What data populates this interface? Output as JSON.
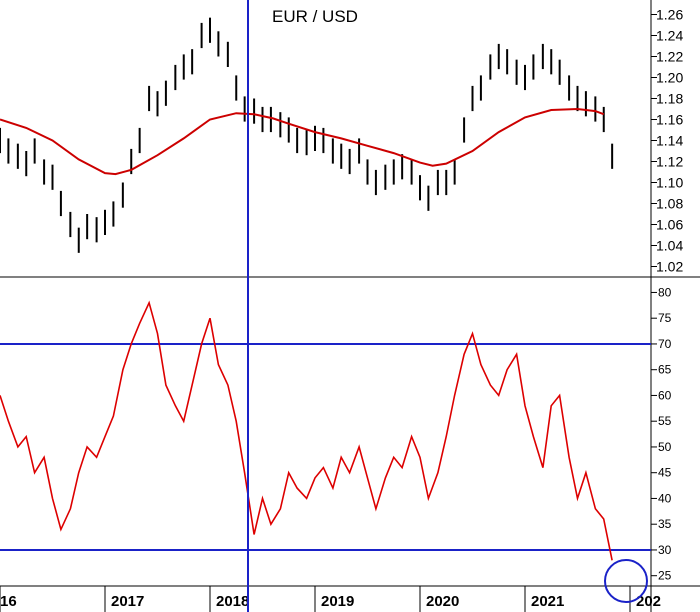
{
  "chart_data": [
    {
      "type": "line",
      "title": "EUR / USD",
      "xlabel": "",
      "ylabel": "",
      "x_ticks": [
        "16",
        "2017",
        "2018",
        "2019",
        "2020",
        "2021",
        "202"
      ],
      "y_ticks": [
        "1.02",
        "1.04",
        "1.06",
        "1.08",
        "1.10",
        "1.12",
        "1.14",
        "1.16",
        "1.18",
        "1.20",
        "1.22",
        "1.24",
        "1.26"
      ],
      "ylim": [
        1.01,
        1.27
      ],
      "xlim": [
        2016.0,
        2022.2
      ],
      "grid": false,
      "series": [
        {
          "color": "#000000",
          "style": "price-bars",
          "x": [
            2016.0,
            2016.08,
            2016.17,
            2016.25,
            2016.33,
            2016.42,
            2016.5,
            2016.58,
            2016.67,
            2016.75,
            2016.83,
            2016.92,
            2017.0,
            2017.08,
            2017.17,
            2017.25,
            2017.33,
            2017.42,
            2017.5,
            2017.58,
            2017.67,
            2017.75,
            2017.83,
            2017.92,
            2018.0,
            2018.08,
            2018.17,
            2018.25,
            2018.33,
            2018.42,
            2018.5,
            2018.58,
            2018.67,
            2018.75,
            2018.83,
            2018.92,
            2019.0,
            2019.08,
            2019.17,
            2019.25,
            2019.33,
            2019.42,
            2019.5,
            2019.58,
            2019.67,
            2019.75,
            2019.83,
            2019.92,
            2020.0,
            2020.08,
            2020.17,
            2020.25,
            2020.33,
            2020.42,
            2020.5,
            2020.58,
            2020.67,
            2020.75,
            2020.83,
            2020.92,
            2021.0,
            2021.08,
            2021.17,
            2021.25,
            2021.33,
            2021.42,
            2021.5,
            2021.58,
            2021.67,
            2021.75,
            2021.83
          ],
          "values": [
            1.14,
            1.13,
            1.125,
            1.118,
            1.13,
            1.11,
            1.105,
            1.08,
            1.06,
            1.045,
            1.058,
            1.055,
            1.062,
            1.07,
            1.088,
            1.12,
            1.14,
            1.18,
            1.175,
            1.185,
            1.2,
            1.21,
            1.215,
            1.24,
            1.245,
            1.232,
            1.222,
            1.19,
            1.17,
            1.168,
            1.16,
            1.16,
            1.155,
            1.15,
            1.14,
            1.138,
            1.142,
            1.14,
            1.13,
            1.125,
            1.12,
            1.13,
            1.11,
            1.1,
            1.105,
            1.11,
            1.115,
            1.11,
            1.095,
            1.085,
            1.1,
            1.1,
            1.11,
            1.15,
            1.18,
            1.19,
            1.21,
            1.22,
            1.215,
            1.205,
            1.2,
            1.21,
            1.22,
            1.215,
            1.205,
            1.19,
            1.18,
            1.175,
            1.17,
            1.16,
            1.125
          ]
        },
        {
          "color": "#cc0000",
          "style": "moving-average",
          "x": [
            2016.0,
            2016.25,
            2016.5,
            2016.75,
            2017.0,
            2017.1,
            2017.25,
            2017.5,
            2017.75,
            2018.0,
            2018.25,
            2018.42,
            2018.6,
            2018.75,
            2019.0,
            2019.25,
            2019.5,
            2019.75,
            2020.0,
            2020.12,
            2020.25,
            2020.5,
            2020.75,
            2021.0,
            2021.25,
            2021.5,
            2021.67,
            2021.75
          ],
          "values": [
            1.16,
            1.152,
            1.14,
            1.122,
            1.109,
            1.108,
            1.112,
            1.126,
            1.142,
            1.16,
            1.166,
            1.165,
            1.161,
            1.156,
            1.148,
            1.142,
            1.135,
            1.128,
            1.119,
            1.116,
            1.118,
            1.13,
            1.148,
            1.162,
            1.169,
            1.17,
            1.168,
            1.165
          ]
        }
      ]
    },
    {
      "type": "line",
      "title": "",
      "xlabel": "",
      "ylabel": "",
      "x_ticks": [
        "16",
        "2017",
        "2018",
        "2019",
        "2020",
        "2021",
        "202"
      ],
      "y_ticks": [
        "25",
        "30",
        "35",
        "40",
        "45",
        "50",
        "55",
        "60",
        "65",
        "70",
        "75",
        "80"
      ],
      "ylim": [
        23,
        83
      ],
      "xlim": [
        2016.0,
        2022.2
      ],
      "grid": false,
      "reference_lines": [
        70,
        30
      ],
      "series": [
        {
          "color": "#dd0000",
          "x": [
            2016.0,
            2016.08,
            2016.17,
            2016.25,
            2016.33,
            2016.42,
            2016.5,
            2016.58,
            2016.67,
            2016.75,
            2016.83,
            2016.92,
            2017.0,
            2017.08,
            2017.17,
            2017.25,
            2017.33,
            2017.42,
            2017.5,
            2017.58,
            2017.67,
            2017.75,
            2017.83,
            2017.92,
            2018.0,
            2018.08,
            2018.17,
            2018.25,
            2018.33,
            2018.42,
            2018.5,
            2018.58,
            2018.67,
            2018.75,
            2018.83,
            2018.92,
            2019.0,
            2019.08,
            2019.17,
            2019.25,
            2019.33,
            2019.42,
            2019.5,
            2019.58,
            2019.67,
            2019.75,
            2019.83,
            2019.92,
            2020.0,
            2020.08,
            2020.17,
            2020.25,
            2020.33,
            2020.42,
            2020.5,
            2020.58,
            2020.67,
            2020.75,
            2020.83,
            2020.92,
            2021.0,
            2021.08,
            2021.17,
            2021.25,
            2021.33,
            2021.42,
            2021.5,
            2021.58,
            2021.67,
            2021.75,
            2021.83
          ],
          "values": [
            60,
            55,
            50,
            52,
            45,
            48,
            40,
            34,
            38,
            45,
            50,
            48,
            52,
            56,
            65,
            70,
            74,
            78,
            72,
            62,
            58,
            55,
            62,
            70,
            75,
            66,
            62,
            55,
            45,
            33,
            40,
            35,
            38,
            45,
            42,
            40,
            44,
            46,
            42,
            48,
            45,
            50,
            44,
            38,
            44,
            48,
            46,
            52,
            48,
            40,
            45,
            52,
            60,
            68,
            72,
            66,
            62,
            60,
            65,
            68,
            58,
            52,
            46,
            58,
            60,
            48,
            40,
            45,
            38,
            36,
            28
          ]
        }
      ]
    }
  ]
}
